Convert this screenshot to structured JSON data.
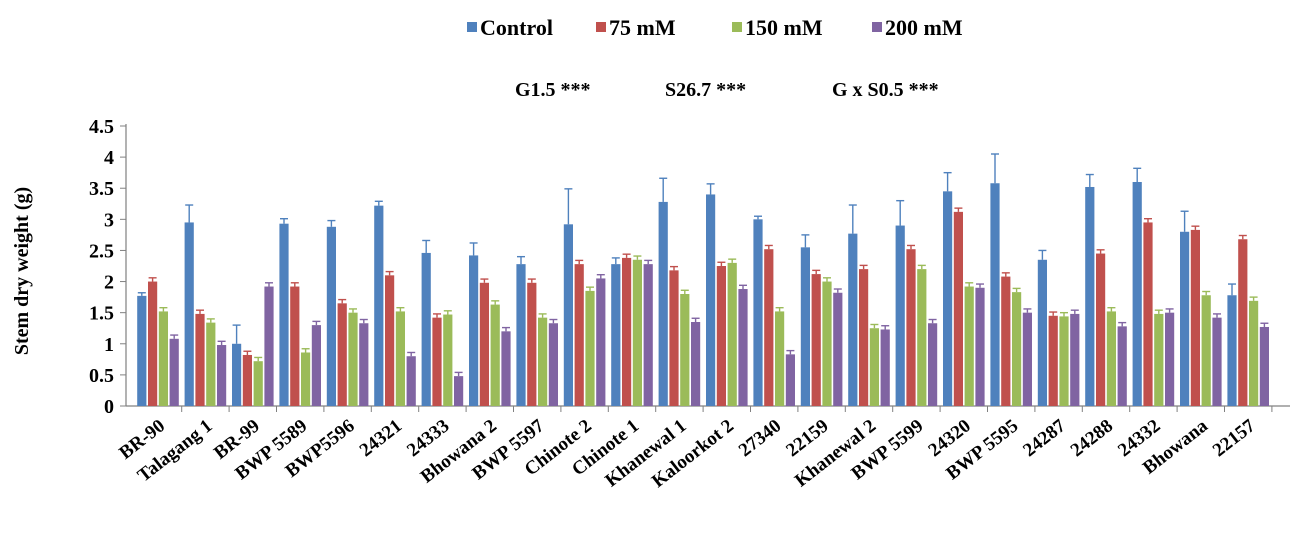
{
  "chart_data": {
    "type": "bar",
    "title": "",
    "xlabel": "",
    "ylabel": "Stem dry weight (g)",
    "ylim": [
      0,
      4.5
    ],
    "yticks": [
      "0",
      "0.5",
      "1",
      "1.5",
      "2",
      "2.5",
      "3",
      "3.5",
      "4",
      "4.5"
    ],
    "grid": false,
    "legend_position": "top-center",
    "stats_annotations": [
      "G1.5 ***",
      "S26.7 ***",
      "G x S0.5 ***"
    ],
    "categories": [
      "BR-90",
      "Talagang 1",
      "BR-99",
      "BWP 5589",
      "BWP5596",
      "24321",
      "24333",
      "Bhowana 2",
      "BWP 5597",
      "Chinote 2",
      "Chinote 1",
      "Khanewal 1",
      "Kaloorkot 2",
      "27340",
      "22159",
      "Khanewal 2",
      "BWP 5599",
      "24320",
      "BWP 5595",
      "24287",
      "24288",
      "24332",
      "Bhowana",
      "22157"
    ],
    "series": [
      {
        "name": "Control",
        "color": "#4F81BD",
        "values": [
          1.77,
          2.95,
          1.0,
          2.93,
          2.88,
          3.22,
          2.46,
          2.42,
          2.28,
          2.92,
          2.28,
          3.28,
          3.4,
          3.0,
          2.55,
          2.77,
          2.9,
          3.45,
          3.58,
          2.35,
          3.52,
          3.6,
          2.8,
          1.78
        ],
        "errors": [
          0.05,
          0.28,
          0.3,
          0.08,
          0.1,
          0.07,
          0.2,
          0.2,
          0.12,
          0.57,
          0.1,
          0.38,
          0.17,
          0.05,
          0.2,
          0.46,
          0.4,
          0.3,
          0.47,
          0.15,
          0.2,
          0.22,
          0.33,
          0.18
        ]
      },
      {
        "name": "75 mM",
        "color": "#C0504D",
        "values": [
          2.0,
          1.48,
          0.82,
          1.92,
          1.65,
          2.1,
          1.42,
          1.98,
          1.98,
          2.28,
          2.38,
          2.18,
          2.25,
          2.52,
          2.12,
          2.2,
          2.52,
          3.12,
          2.08,
          1.45,
          2.45,
          2.95,
          2.83,
          2.68
        ]
      },
      {
        "name": "150 mM",
        "color": "#9BBB59",
        "values": [
          1.52,
          1.34,
          0.72,
          0.86,
          1.5,
          1.52,
          1.47,
          1.63,
          1.42,
          1.85,
          2.35,
          1.8,
          2.3,
          1.52,
          2.0,
          1.25,
          2.2,
          1.92,
          1.83,
          1.44,
          1.52,
          1.48,
          1.78,
          1.69
        ]
      },
      {
        "name": "200 mM",
        "color": "#8064A2",
        "values": [
          1.08,
          0.98,
          1.92,
          1.3,
          1.33,
          0.8,
          0.48,
          1.2,
          1.33,
          2.05,
          2.28,
          1.35,
          1.88,
          0.83,
          1.82,
          1.23,
          1.33,
          1.9,
          1.5,
          1.48,
          1.28,
          1.5,
          1.42,
          1.27
        ]
      }
    ]
  }
}
